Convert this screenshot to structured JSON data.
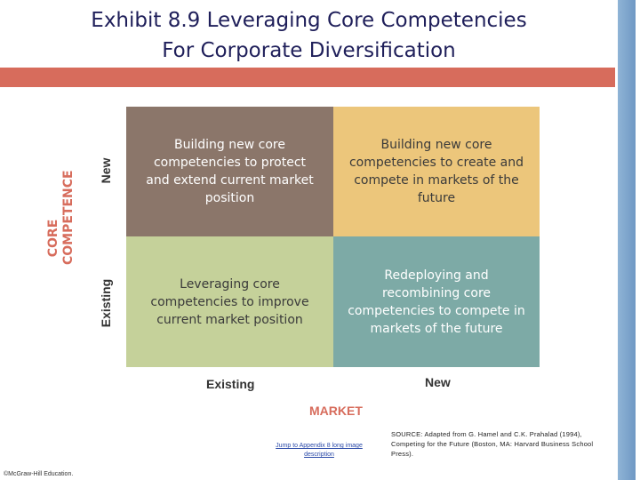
{
  "title": {
    "line1": "Exhibit 8.9 Leveraging Core Competencies",
    "line2": "For Corporate Diversification"
  },
  "matrix": {
    "y_axis_label": "CORE COMPETENCE",
    "y_tick_new": "New",
    "y_tick_existing": "Existing",
    "x_axis_label": "MARKET",
    "x_tick_existing": "Existing",
    "x_tick_new": "New",
    "cells": {
      "top_left": "Building new core competencies to protect and extend current market position",
      "top_right": "Building new core competencies to create and compete in markets of the future",
      "bottom_left": "Leveraging core competencies to improve current market position",
      "bottom_right": "Redeploying and recombining core competencies to compete in markets of the future"
    },
    "colors": {
      "top_left": "#8b766a",
      "top_right": "#ecc67b",
      "bottom_left": "#c5d19a",
      "bottom_right": "#7daaa6",
      "accent": "#d76c5c"
    }
  },
  "jump_link": "Jump to Appendix 8 long image description",
  "source": "SOURCE: Adapted from G. Hamel and C.K. Prahalad (1994), Competing for the Future (Boston, MA: Harvard Business School Press).",
  "copyright": "©McGraw-Hill Education."
}
